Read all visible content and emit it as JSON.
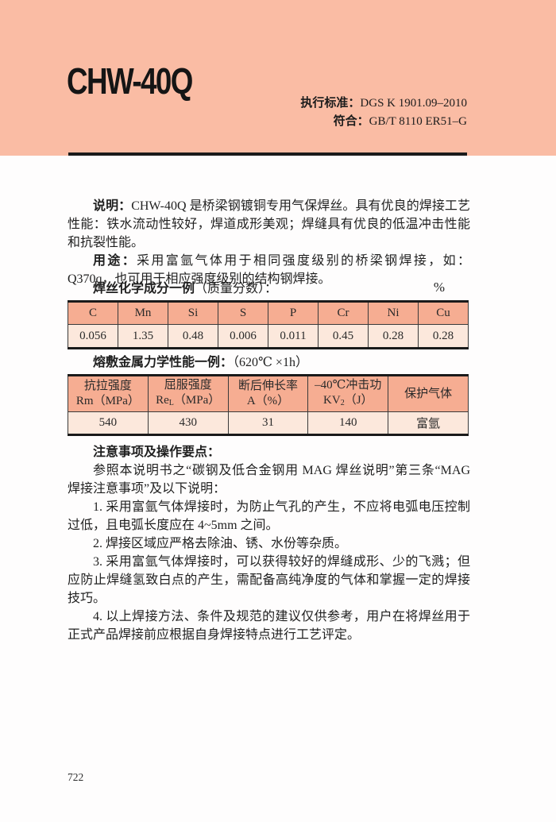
{
  "header": {
    "title": "CHW-40Q",
    "standard_label": "执行标准：",
    "standard_value": "DGS K 1901.09–2010",
    "conform_label": "符合：",
    "conform_value": "GB/T 8110 ER51–G"
  },
  "intro": {
    "p1_label": "说明：",
    "p1_text": "CHW-40Q 是桥梁钢镀铜专用气保焊丝。具有优良的焊接工艺性能：铁水流动性较好，焊道成形美观；焊缝具有优良的低温冲击性能和抗裂性能。",
    "p2_label": "用途：",
    "p2_text": "采用富氩气体用于相同强度级别的桥梁钢焊接，如：Q370q，也可用于相应强度级别的结构钢焊接。"
  },
  "chem_table": {
    "caption_bold": "焊丝化学成分一例",
    "caption_rest": "（质量分数）：",
    "unit": "%",
    "headers": [
      "C",
      "Mn",
      "Si",
      "S",
      "P",
      "Cr",
      "Ni",
      "Cu"
    ],
    "values": [
      "0.056",
      "1.35",
      "0.48",
      "0.006",
      "0.011",
      "0.45",
      "0.28",
      "0.28"
    ]
  },
  "mech_table": {
    "caption_bold": "熔敷金属力学性能一例：",
    "caption_rest": "（620℃ ×1h）",
    "headers": [
      {
        "line1": "抗拉强度",
        "main": "Rm",
        "sub": "",
        "unit": "（MPa）"
      },
      {
        "line1": "屈服强度",
        "main": "Re",
        "sub": "L",
        "unit": "（MPa）"
      },
      {
        "line1": "断后伸长率",
        "main": "A",
        "sub": "",
        "unit": "（%）"
      },
      {
        "line1": "–40℃冲击功",
        "main": "KV",
        "sub": "2",
        "unit": "（J）"
      },
      {
        "line1": "保护气体",
        "main": "",
        "sub": "",
        "unit": ""
      }
    ],
    "values": [
      "540",
      "430",
      "31",
      "140",
      "富氩"
    ]
  },
  "notes": {
    "heading": "注意事项及操作要点：",
    "intro_line": "参照本说明书之“碳钢及低合金钢用 MAG 焊丝说明”第三条“MAG 焊接注意事项”及以下说明：",
    "items": [
      "1. 采用富氩气体焊接时，为防止气孔的产生，不应将电弧电压控制过低，且电弧长度应在 4~5mm 之间。",
      "2. 焊接区域应严格去除油、锈、水份等杂质。",
      "3. 采用富氩气体焊接时，可以获得较好的焊缝成形、少的飞溅；但应防止焊缝氢致白点的产生，需配备高纯净度的气体和掌握一定的焊接技巧。",
      "4. 以上焊接方法、条件及规范的建议仅供参考，用户在将焊丝用于正式产品焊接前应根据自身焊接特点进行工艺评定。"
    ]
  },
  "footer": {
    "page_number": "722"
  },
  "colors": {
    "band": "#fabca4",
    "table_header_bg": "#f6ad92",
    "table_row_bg": "#fce8dc",
    "rule": "#1b1b1b"
  }
}
